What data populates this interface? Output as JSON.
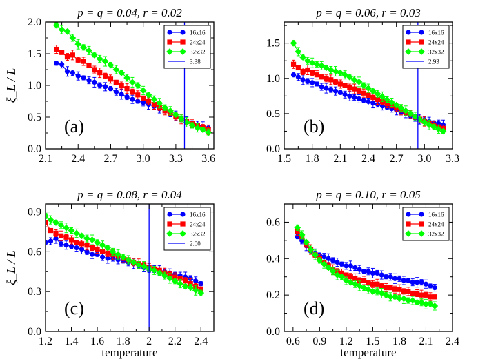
{
  "chart_data": [
    {
      "type": "scatter",
      "title": "p = q = 0.04, r = 0.02",
      "panel_label": "(a)",
      "ylabel": "ξ_L / L",
      "xlabel": "",
      "xlim": [
        2.1,
        3.65
      ],
      "ylim": [
        0.0,
        2.0
      ],
      "xticks": [
        2.1,
        2.4,
        2.7,
        3.0,
        3.3,
        3.6
      ],
      "yticks": [
        0.0,
        0.5,
        1.0,
        1.5,
        2.0
      ],
      "xtick_labels": [
        "2.1",
        "2.4",
        "2.7",
        "3.0",
        "3.3",
        "3.6"
      ],
      "ytick_labels": [
        "0.0",
        "0.5",
        "1.0",
        "1.5",
        "2.0"
      ],
      "legend_position": "top-right",
      "vline": {
        "x": 3.38,
        "label": "3.38"
      },
      "series": [
        {
          "name": "16x16",
          "color": "#0000ff",
          "marker": "circle",
          "x": [
            2.2,
            2.25,
            2.3,
            2.35,
            2.4,
            2.45,
            2.5,
            2.55,
            2.6,
            2.65,
            2.7,
            2.75,
            2.8,
            2.85,
            2.9,
            2.95,
            3.0,
            3.05,
            3.1,
            3.15,
            3.2,
            3.25,
            3.3,
            3.35,
            3.4,
            3.45,
            3.5,
            3.55,
            3.6
          ],
          "y": [
            1.35,
            1.33,
            1.22,
            1.2,
            1.15,
            1.12,
            1.08,
            1.05,
            1.0,
            0.98,
            0.95,
            0.9,
            0.86,
            0.82,
            0.78,
            0.75,
            0.73,
            0.7,
            0.67,
            0.63,
            0.6,
            0.56,
            0.52,
            0.47,
            0.44,
            0.41,
            0.38,
            0.35,
            0.33
          ]
        },
        {
          "name": "24x24",
          "color": "#ff0000",
          "marker": "square",
          "x": [
            2.2,
            2.25,
            2.3,
            2.35,
            2.4,
            2.45,
            2.5,
            2.55,
            2.6,
            2.65,
            2.7,
            2.75,
            2.8,
            2.85,
            2.9,
            2.95,
            3.0,
            3.05,
            3.1,
            3.15,
            3.2,
            3.25,
            3.3,
            3.35,
            3.4,
            3.45,
            3.5,
            3.55,
            3.6
          ],
          "y": [
            1.57,
            1.52,
            1.45,
            1.48,
            1.4,
            1.38,
            1.32,
            1.25,
            1.2,
            1.15,
            1.1,
            1.05,
            1.0,
            0.95,
            0.9,
            0.85,
            0.8,
            0.75,
            0.7,
            0.65,
            0.6,
            0.56,
            0.51,
            0.47,
            0.43,
            0.4,
            0.37,
            0.33,
            0.3
          ]
        },
        {
          "name": "32x32",
          "color": "#00ff00",
          "marker": "diamond",
          "x": [
            2.2,
            2.25,
            2.3,
            2.35,
            2.4,
            2.45,
            2.5,
            2.55,
            2.6,
            2.65,
            2.7,
            2.75,
            2.8,
            2.85,
            2.9,
            2.95,
            3.0,
            3.05,
            3.1,
            3.15,
            3.2,
            3.25,
            3.3,
            3.35,
            3.4,
            3.45,
            3.5,
            3.55,
            3.6
          ],
          "y": [
            1.95,
            1.88,
            1.85,
            1.75,
            1.65,
            1.6,
            1.55,
            1.48,
            1.42,
            1.38,
            1.32,
            1.25,
            1.2,
            1.12,
            1.05,
            1.0,
            0.92,
            0.85,
            0.78,
            0.72,
            0.65,
            0.6,
            0.54,
            0.48,
            0.42,
            0.37,
            0.33,
            0.3,
            0.26
          ]
        }
      ]
    },
    {
      "type": "scatter",
      "title": "p = q = 0.06, r = 0.03",
      "panel_label": "(b)",
      "ylabel": "",
      "xlabel": "",
      "xlim": [
        1.5,
        3.3
      ],
      "ylim": [
        0.0,
        1.8
      ],
      "xticks": [
        1.5,
        1.8,
        2.1,
        2.4,
        2.7,
        3.0,
        3.3
      ],
      "yticks": [
        0.0,
        0.5,
        1.0,
        1.5
      ],
      "xtick_labels": [
        "1.5",
        "1.8",
        "2.1",
        "2.4",
        "2.7",
        "3.0",
        "3.3"
      ],
      "ytick_labels": [
        "0.0",
        "0.5",
        "1.0",
        "1.5"
      ],
      "legend_position": "top-right",
      "vline": {
        "x": 2.93,
        "label": "2.93"
      },
      "series": [
        {
          "name": "16x16",
          "color": "#0000ff",
          "marker": "circle",
          "x": [
            1.6,
            1.65,
            1.7,
            1.75,
            1.8,
            1.85,
            1.9,
            1.95,
            2.0,
            2.05,
            2.1,
            2.15,
            2.2,
            2.25,
            2.3,
            2.35,
            2.4,
            2.45,
            2.5,
            2.55,
            2.6,
            2.65,
            2.7,
            2.75,
            2.8,
            2.85,
            2.9,
            2.95,
            3.0,
            3.05,
            3.1,
            3.15,
            3.2
          ],
          "y": [
            1.05,
            1.02,
            0.98,
            0.96,
            0.94,
            0.92,
            0.88,
            0.86,
            0.84,
            0.82,
            0.8,
            0.77,
            0.75,
            0.73,
            0.71,
            0.69,
            0.67,
            0.65,
            0.63,
            0.61,
            0.59,
            0.57,
            0.55,
            0.52,
            0.5,
            0.47,
            0.44,
            0.42,
            0.41,
            0.39,
            0.37,
            0.36,
            0.34
          ]
        },
        {
          "name": "24x24",
          "color": "#ff0000",
          "marker": "square",
          "x": [
            1.6,
            1.65,
            1.7,
            1.75,
            1.8,
            1.85,
            1.9,
            1.95,
            2.0,
            2.05,
            2.1,
            2.15,
            2.2,
            2.25,
            2.3,
            2.35,
            2.4,
            2.45,
            2.5,
            2.55,
            2.6,
            2.65,
            2.7,
            2.75,
            2.8,
            2.85,
            2.9,
            2.95,
            3.0,
            3.05,
            3.1,
            3.15,
            3.2
          ],
          "y": [
            1.2,
            1.15,
            1.1,
            1.12,
            1.08,
            1.05,
            1.02,
            1.0,
            0.98,
            0.95,
            0.92,
            0.9,
            0.87,
            0.85,
            0.82,
            0.79,
            0.76,
            0.73,
            0.7,
            0.67,
            0.64,
            0.61,
            0.58,
            0.55,
            0.52,
            0.49,
            0.45,
            0.42,
            0.39,
            0.36,
            0.33,
            0.31,
            0.29
          ]
        },
        {
          "name": "32x32",
          "color": "#00ff00",
          "marker": "diamond",
          "x": [
            1.6,
            1.65,
            1.7,
            1.75,
            1.8,
            1.85,
            1.9,
            1.95,
            2.0,
            2.05,
            2.1,
            2.15,
            2.2,
            2.25,
            2.3,
            2.35,
            2.4,
            2.45,
            2.5,
            2.55,
            2.6,
            2.65,
            2.7,
            2.75,
            2.8,
            2.85,
            2.9,
            2.95,
            3.0,
            3.05,
            3.1,
            3.15,
            3.2
          ],
          "y": [
            1.5,
            1.38,
            1.3,
            1.25,
            1.22,
            1.2,
            1.18,
            1.15,
            1.12,
            1.1,
            1.08,
            1.05,
            1.02,
            0.98,
            0.95,
            0.9,
            0.86,
            0.82,
            0.78,
            0.74,
            0.7,
            0.66,
            0.62,
            0.58,
            0.54,
            0.5,
            0.46,
            0.42,
            0.38,
            0.34,
            0.31,
            0.28,
            0.25
          ]
        }
      ]
    },
    {
      "type": "scatter",
      "title": "p = q = 0.08, r = 0.04",
      "panel_label": "(c)",
      "ylabel": "ξ_L / L",
      "xlabel": "temperature",
      "xlim": [
        1.2,
        2.5
      ],
      "ylim": [
        0.0,
        0.96
      ],
      "xticks": [
        1.2,
        1.4,
        1.6,
        1.8,
        2.0,
        2.2,
        2.4
      ],
      "yticks": [
        0.0,
        0.3,
        0.6,
        0.9
      ],
      "xtick_labels": [
        "1.2",
        "1.4",
        "1.6",
        "1.8",
        "2",
        "2.2",
        "2.4"
      ],
      "ytick_labels": [
        "0.0",
        "0.3",
        "0.6",
        "0.9"
      ],
      "legend_position": "top-right",
      "vline": {
        "x": 2.0,
        "label": "2.00"
      },
      "series": [
        {
          "name": "16x16",
          "color": "#0000ff",
          "marker": "circle",
          "x": [
            1.2,
            1.24,
            1.28,
            1.32,
            1.36,
            1.4,
            1.44,
            1.48,
            1.52,
            1.56,
            1.6,
            1.64,
            1.68,
            1.72,
            1.76,
            1.8,
            1.84,
            1.88,
            1.92,
            1.96,
            2.0,
            2.04,
            2.08,
            2.12,
            2.16,
            2.2,
            2.24,
            2.28,
            2.32,
            2.36,
            2.4
          ],
          "y": [
            0.67,
            0.68,
            0.7,
            0.66,
            0.65,
            0.64,
            0.63,
            0.62,
            0.6,
            0.58,
            0.58,
            0.56,
            0.55,
            0.55,
            0.54,
            0.53,
            0.52,
            0.51,
            0.5,
            0.48,
            0.46,
            0.47,
            0.46,
            0.45,
            0.44,
            0.43,
            0.42,
            0.41,
            0.4,
            0.38,
            0.36
          ]
        },
        {
          "name": "24x24",
          "color": "#ff0000",
          "marker": "square",
          "x": [
            1.2,
            1.24,
            1.28,
            1.32,
            1.36,
            1.4,
            1.44,
            1.48,
            1.52,
            1.56,
            1.6,
            1.64,
            1.68,
            1.72,
            1.76,
            1.8,
            1.84,
            1.88,
            1.92,
            1.96,
            2.0,
            2.04,
            2.08,
            2.12,
            2.16,
            2.2,
            2.24,
            2.28,
            2.32,
            2.36,
            2.4
          ],
          "y": [
            0.82,
            0.76,
            0.74,
            0.72,
            0.71,
            0.69,
            0.67,
            0.66,
            0.65,
            0.63,
            0.62,
            0.6,
            0.59,
            0.58,
            0.57,
            0.55,
            0.54,
            0.52,
            0.51,
            0.5,
            0.48,
            0.47,
            0.46,
            0.44,
            0.43,
            0.41,
            0.4,
            0.38,
            0.36,
            0.34,
            0.32
          ]
        },
        {
          "name": "32x32",
          "color": "#00ff00",
          "marker": "diamond",
          "x": [
            1.2,
            1.24,
            1.28,
            1.32,
            1.36,
            1.4,
            1.44,
            1.48,
            1.52,
            1.56,
            1.6,
            1.64,
            1.68,
            1.72,
            1.76,
            1.8,
            1.84,
            1.88,
            1.92,
            1.96,
            2.0,
            2.04,
            2.08,
            2.12,
            2.16,
            2.2,
            2.24,
            2.28,
            2.32,
            2.36,
            2.4
          ],
          "y": [
            0.87,
            0.84,
            0.82,
            0.8,
            0.78,
            0.76,
            0.74,
            0.72,
            0.7,
            0.69,
            0.67,
            0.65,
            0.63,
            0.6,
            0.58,
            0.56,
            0.54,
            0.52,
            0.5,
            0.49,
            0.47,
            0.46,
            0.44,
            0.42,
            0.4,
            0.38,
            0.36,
            0.34,
            0.33,
            0.31,
            0.29
          ]
        }
      ]
    },
    {
      "type": "scatter",
      "title": "p = q = 0.10, r = 0.05",
      "panel_label": "(d)",
      "ylabel": "",
      "xlabel": "temperature",
      "xlim": [
        0.5,
        2.4
      ],
      "ylim": [
        0.0,
        0.7
      ],
      "xticks": [
        0.6,
        0.9,
        1.2,
        1.5,
        1.8,
        2.1,
        2.4
      ],
      "yticks": [
        0.0,
        0.2,
        0.4,
        0.6
      ],
      "xtick_labels": [
        "0.6",
        "0.9",
        "1.2",
        "1.5",
        "1.8",
        "2.1",
        "2.4"
      ],
      "ytick_labels": [
        "0.0",
        "0.2",
        "0.4",
        "0.6"
      ],
      "legend_position": "top-right",
      "vline": null,
      "series": [
        {
          "name": "16x16",
          "color": "#0000ff",
          "marker": "circle",
          "x": [
            0.65,
            0.7,
            0.75,
            0.8,
            0.85,
            0.9,
            0.95,
            1.0,
            1.05,
            1.1,
            1.15,
            1.2,
            1.25,
            1.3,
            1.35,
            1.4,
            1.45,
            1.5,
            1.55,
            1.6,
            1.65,
            1.7,
            1.75,
            1.8,
            1.85,
            1.9,
            1.95,
            2.0,
            2.05,
            2.1,
            2.15,
            2.2
          ],
          "y": [
            0.52,
            0.5,
            0.47,
            0.44,
            0.43,
            0.42,
            0.41,
            0.4,
            0.39,
            0.38,
            0.37,
            0.36,
            0.36,
            0.35,
            0.34,
            0.33,
            0.33,
            0.32,
            0.32,
            0.31,
            0.3,
            0.3,
            0.29,
            0.29,
            0.28,
            0.28,
            0.27,
            0.27,
            0.27,
            0.26,
            0.25,
            0.24
          ]
        },
        {
          "name": "24x24",
          "color": "#ff0000",
          "marker": "square",
          "x": [
            0.65,
            0.7,
            0.75,
            0.8,
            0.85,
            0.9,
            0.95,
            1.0,
            1.05,
            1.1,
            1.15,
            1.2,
            1.25,
            1.3,
            1.35,
            1.4,
            1.45,
            1.5,
            1.55,
            1.6,
            1.65,
            1.7,
            1.75,
            1.8,
            1.85,
            1.9,
            1.95,
            2.0,
            2.05,
            2.1,
            2.15,
            2.2
          ],
          "y": [
            0.55,
            0.52,
            0.48,
            0.45,
            0.42,
            0.4,
            0.38,
            0.36,
            0.34,
            0.33,
            0.32,
            0.31,
            0.3,
            0.29,
            0.28,
            0.28,
            0.27,
            0.26,
            0.26,
            0.25,
            0.24,
            0.24,
            0.23,
            0.23,
            0.22,
            0.22,
            0.21,
            0.21,
            0.2,
            0.2,
            0.19,
            0.19
          ]
        },
        {
          "name": "32x32",
          "color": "#00ff00",
          "marker": "diamond",
          "x": [
            0.65,
            0.7,
            0.75,
            0.8,
            0.85,
            0.9,
            0.95,
            1.0,
            1.05,
            1.1,
            1.15,
            1.2,
            1.25,
            1.3,
            1.35,
            1.4,
            1.45,
            1.5,
            1.55,
            1.6,
            1.65,
            1.7,
            1.75,
            1.8,
            1.85,
            1.9,
            1.95,
            2.0,
            2.05,
            2.1,
            2.15,
            2.2
          ],
          "y": [
            0.57,
            0.53,
            0.49,
            0.45,
            0.42,
            0.39,
            0.37,
            0.35,
            0.33,
            0.31,
            0.3,
            0.28,
            0.27,
            0.26,
            0.25,
            0.24,
            0.23,
            0.22,
            0.22,
            0.21,
            0.2,
            0.19,
            0.19,
            0.18,
            0.18,
            0.17,
            0.17,
            0.16,
            0.16,
            0.15,
            0.15,
            0.14
          ]
        }
      ]
    }
  ]
}
